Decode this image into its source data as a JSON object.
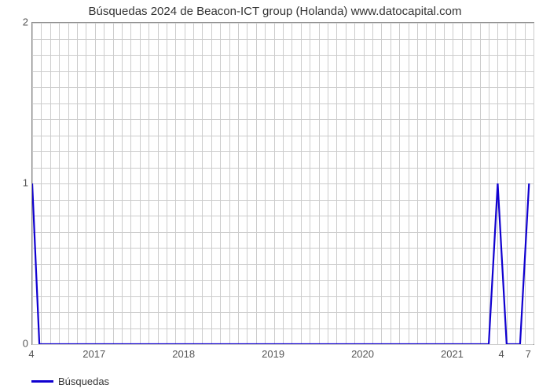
{
  "chart": {
    "type": "line",
    "title": "Búsquedas 2024 de Beacon-ICT group (Holanda) www.datocapital.com",
    "title_fontsize": 15,
    "title_color": "#333333",
    "background_color": "#ffffff",
    "plot_border_color": "#888888",
    "grid_color": "#cccccc",
    "x": {
      "min": 2016.3,
      "max": 2021.9,
      "ticks": [
        2017,
        2018,
        2019,
        2020,
        2021
      ],
      "tick_labels": [
        "2017",
        "2018",
        "2019",
        "2020",
        "2021"
      ],
      "minor_per_major": 10
    },
    "y": {
      "min": 0,
      "max": 2,
      "ticks": [
        0,
        1,
        2
      ],
      "tick_labels": [
        "0",
        "1",
        "2"
      ],
      "minor_per_major": 10
    },
    "series": {
      "name": "Búsquedas",
      "color": "#1000d0",
      "line_width": 2.2,
      "points": [
        {
          "x": 2016.3,
          "y": 1.0
        },
        {
          "x": 2016.38,
          "y": 0.0
        },
        {
          "x": 2021.4,
          "y": 0.0
        },
        {
          "x": 2021.5,
          "y": 1.0
        },
        {
          "x": 2021.6,
          "y": 0.0
        },
        {
          "x": 2021.75,
          "y": 0.0
        },
        {
          "x": 2021.85,
          "y": 1.0
        }
      ]
    },
    "point_labels": [
      {
        "x": 2016.3,
        "text": "4"
      },
      {
        "x": 2021.55,
        "text": "4"
      },
      {
        "x": 2021.85,
        "text": "7"
      }
    ],
    "axis_label_color": "#555555",
    "axis_label_fontsize": 13,
    "legend": {
      "label": "Búsquedas",
      "color": "#1000d0"
    }
  }
}
